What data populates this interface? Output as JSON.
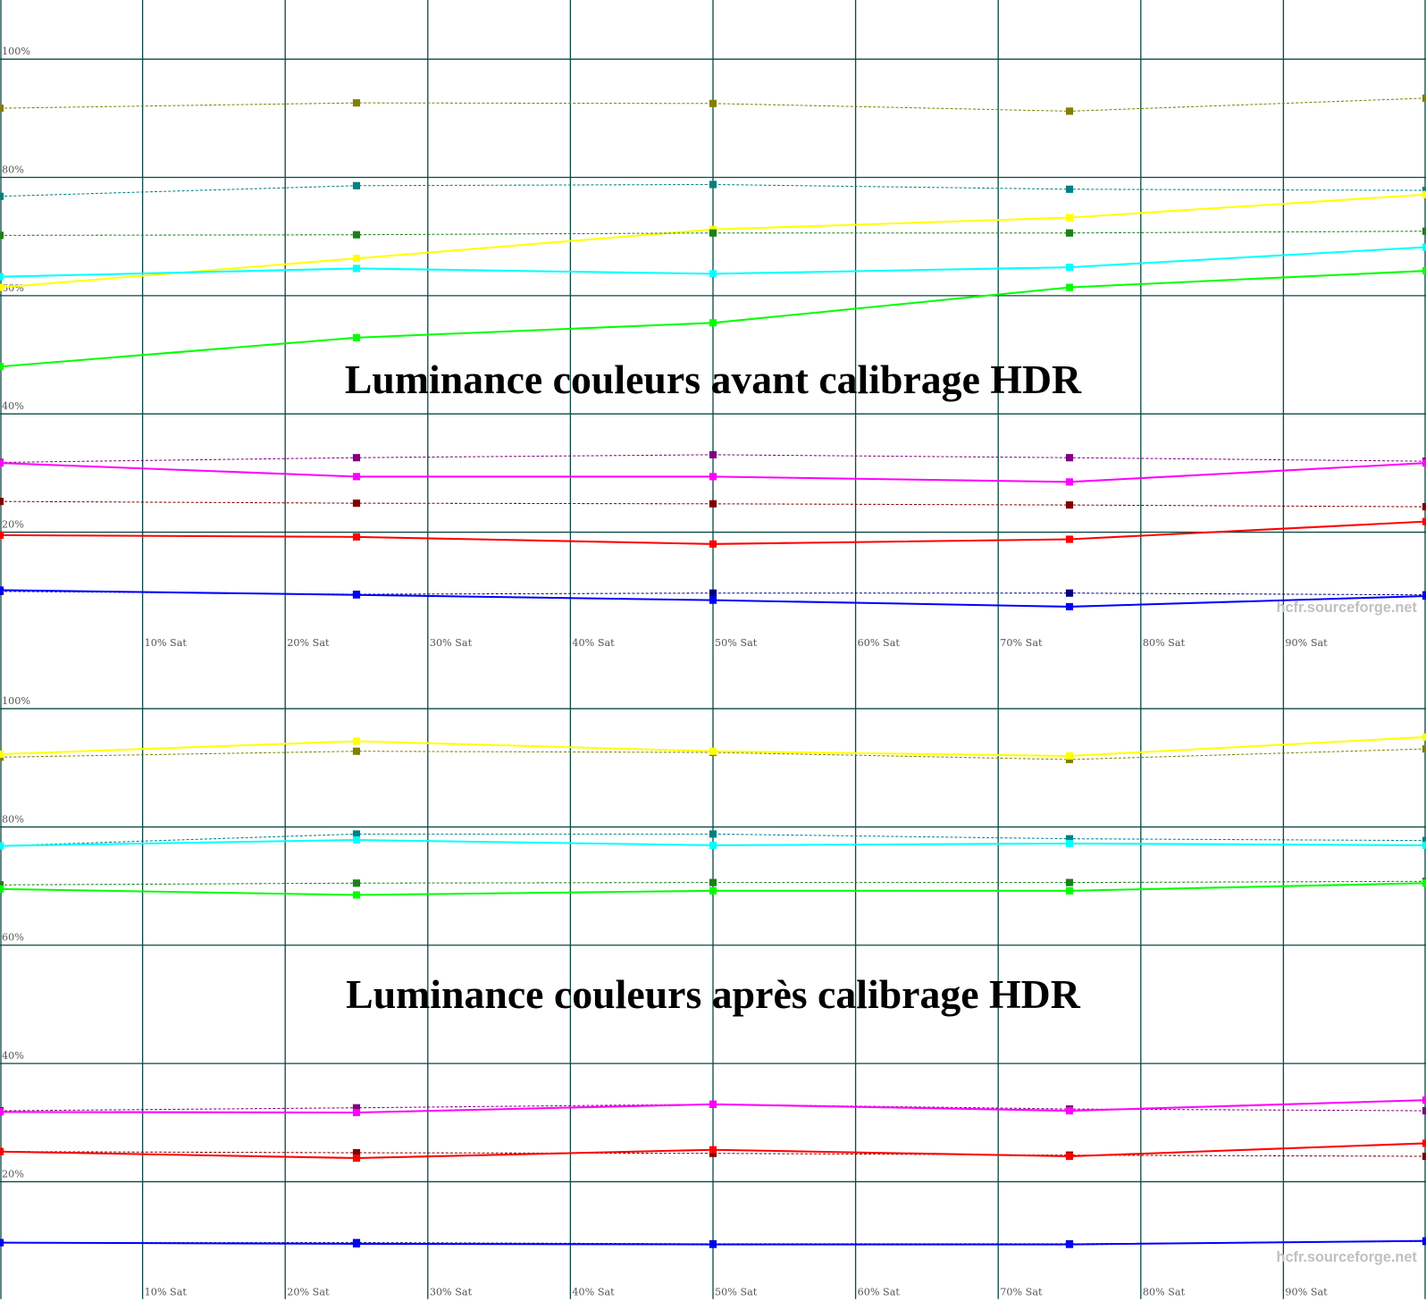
{
  "chart_data": [
    {
      "type": "line",
      "title": "Luminance couleurs avant calibrage HDR",
      "watermark": "hcfr.sourceforge.net",
      "x": [
        0,
        25,
        50,
        75,
        100
      ],
      "xlim": [
        0,
        100
      ],
      "ylim": [
        0,
        110
      ],
      "grid": true,
      "x_tick_labels": [
        "10% Sat",
        "20% Sat",
        "30% Sat",
        "40% Sat",
        "50% Sat",
        "60% Sat",
        "70% Sat",
        "80% Sat",
        "90% Sat"
      ],
      "y_tick_labels": [
        "20%",
        "40%",
        "60%",
        "80%",
        "100%"
      ],
      "series": [
        {
          "color": "#808000",
          "style": "dashed",
          "values": [
            91.7,
            92.6,
            92.5,
            91.2,
            93.4
          ]
        },
        {
          "color": "#008080",
          "style": "dashed",
          "values": [
            76.8,
            78.6,
            78.8,
            78.0,
            77.8
          ]
        },
        {
          "color": "#ffff00",
          "style": "solid",
          "values": [
            61.4,
            66.3,
            71.2,
            73.2,
            77.1
          ]
        },
        {
          "color": "#1a801a",
          "style": "dashed",
          "values": [
            70.2,
            70.3,
            70.6,
            70.6,
            70.9
          ]
        },
        {
          "color": "#00ffff",
          "style": "solid",
          "values": [
            63.2,
            64.6,
            63.7,
            64.8,
            68.2
          ]
        },
        {
          "color": "#00ff00",
          "style": "solid",
          "values": [
            48.0,
            52.9,
            55.4,
            61.4,
            64.2
          ]
        },
        {
          "color": "#800080",
          "style": "dashed",
          "values": [
            31.8,
            32.6,
            33.1,
            32.6,
            32.0
          ]
        },
        {
          "color": "#ff00ff",
          "style": "solid",
          "values": [
            31.7,
            29.4,
            29.4,
            28.5,
            31.7
          ]
        },
        {
          "color": "#800000",
          "style": "dashed",
          "values": [
            25.2,
            24.9,
            24.8,
            24.6,
            24.3
          ]
        },
        {
          "color": "#ff0000",
          "style": "solid",
          "values": [
            19.5,
            19.2,
            18.0,
            18.8,
            21.8
          ]
        },
        {
          "color": "#000080",
          "style": "dashed",
          "values": [
            10.0,
            9.5,
            9.7,
            9.7,
            9.4
          ]
        },
        {
          "color": "#0000ff",
          "style": "solid",
          "values": [
            10.2,
            9.4,
            8.5,
            7.4,
            9.2
          ]
        }
      ]
    },
    {
      "type": "line",
      "title": "Luminance couleurs après calibrage HDR",
      "watermark": "hcfr.sourceforge.net",
      "x": [
        0,
        25,
        50,
        75,
        100
      ],
      "xlim": [
        0,
        100
      ],
      "ylim": [
        0,
        110
      ],
      "grid": true,
      "x_tick_labels": [
        "10% Sat",
        "20% Sat",
        "30% Sat",
        "40% Sat",
        "50% Sat",
        "60% Sat",
        "70% Sat",
        "80% Sat",
        "90% Sat"
      ],
      "y_tick_labels": [
        "20%",
        "40%",
        "60%",
        "80%",
        "100%"
      ],
      "series": [
        {
          "color": "#808000",
          "style": "dashed",
          "values": [
            91.8,
            92.8,
            92.6,
            91.4,
            93.2
          ]
        },
        {
          "color": "#ffff00",
          "style": "solid",
          "values": [
            92.3,
            94.5,
            92.8,
            92.0,
            95.2
          ]
        },
        {
          "color": "#008080",
          "style": "dashed",
          "values": [
            76.8,
            78.8,
            78.8,
            78.0,
            77.7
          ]
        },
        {
          "color": "#00ffff",
          "style": "solid",
          "values": [
            76.8,
            77.8,
            76.9,
            77.2,
            76.9
          ]
        },
        {
          "color": "#1a801a",
          "style": "dashed",
          "values": [
            70.2,
            70.5,
            70.6,
            70.6,
            70.8
          ]
        },
        {
          "color": "#00ff00",
          "style": "solid",
          "values": [
            69.5,
            68.5,
            69.2,
            69.2,
            70.5
          ]
        },
        {
          "color": "#800080",
          "style": "dashed",
          "values": [
            32.0,
            32.5,
            33.1,
            32.3,
            32.0
          ]
        },
        {
          "color": "#ff00ff",
          "style": "solid",
          "values": [
            31.8,
            31.7,
            33.1,
            32.0,
            33.8
          ]
        },
        {
          "color": "#800000",
          "style": "dashed",
          "values": [
            25.1,
            24.9,
            24.8,
            24.5,
            24.3
          ]
        },
        {
          "color": "#ff0000",
          "style": "solid",
          "values": [
            25.1,
            24.0,
            25.4,
            24.3,
            26.5
          ]
        },
        {
          "color": "#000080",
          "style": "dashed",
          "values": [
            9.7,
            9.7,
            9.5,
            9.5,
            9.9
          ]
        },
        {
          "color": "#0000ff",
          "style": "solid",
          "values": [
            9.7,
            9.5,
            9.4,
            9.4,
            10.0
          ]
        }
      ]
    }
  ]
}
